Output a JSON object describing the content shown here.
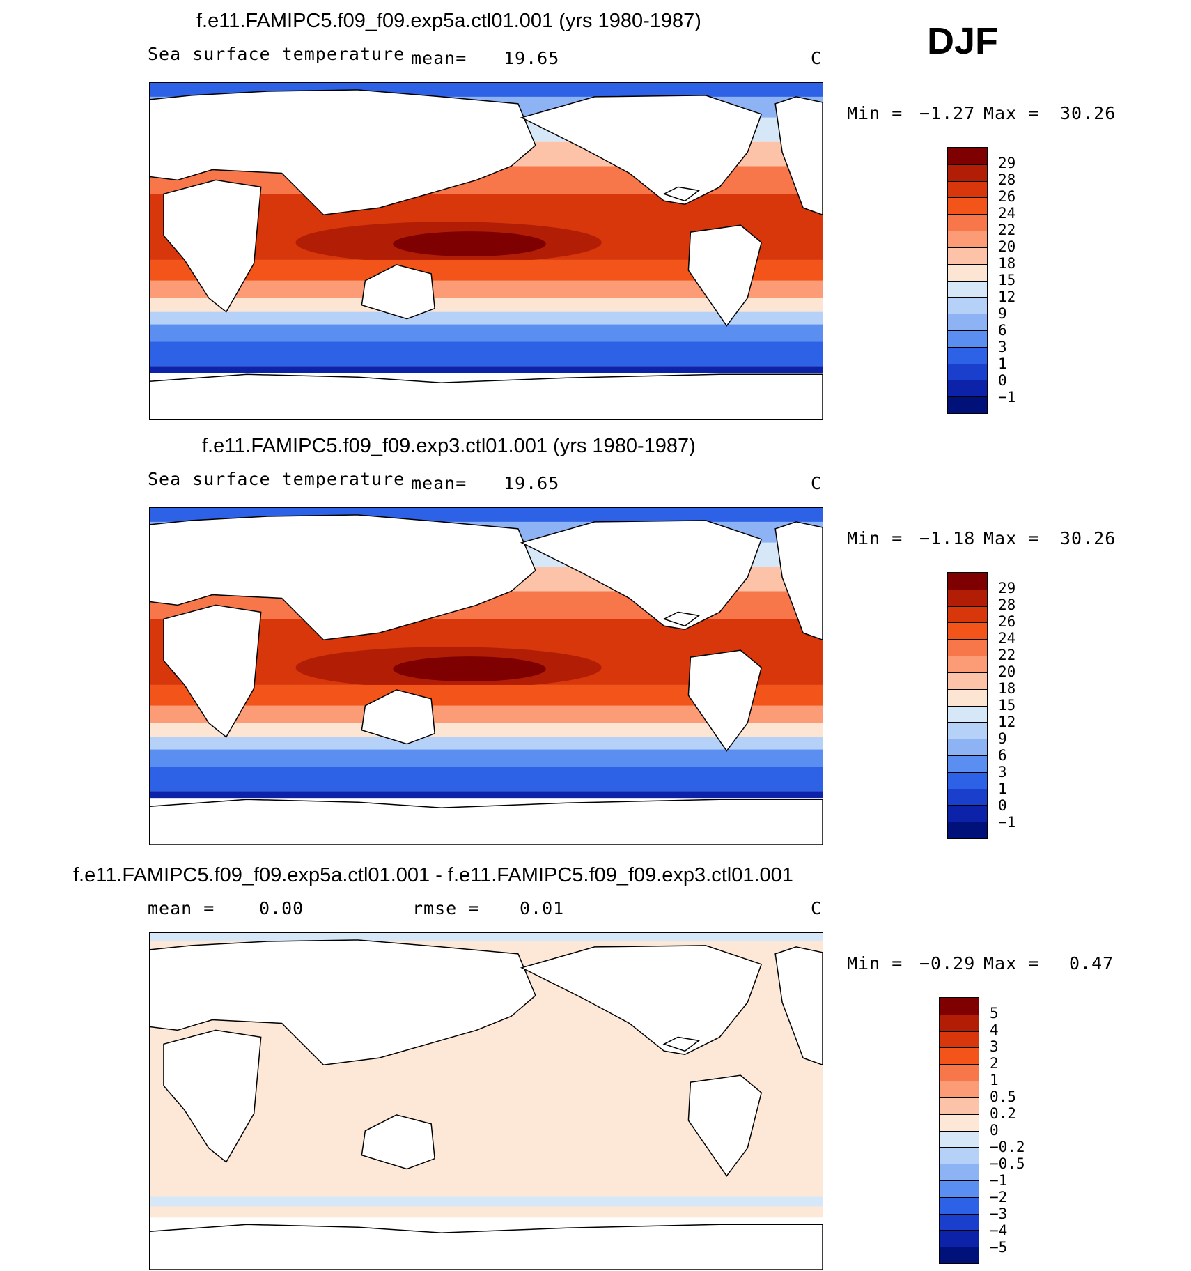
{
  "season": "DJF",
  "panels": [
    {
      "title": "f.e11.FAMIPC5.f09_f09.exp5a.ctl01.001 (yrs 1980-1987)",
      "variable": "Sea surface temperature",
      "stat1_label": "mean=",
      "stat1_value": "19.65",
      "units": "C",
      "min_label": "Min =",
      "min_value": "−1.27",
      "max_label": "Max =",
      "max_value": "30.26",
      "levels": [
        "29",
        "28",
        "26",
        "24",
        "22",
        "20",
        "18",
        "15",
        "12",
        "9",
        "6",
        "3",
        "1",
        "0",
        "−1"
      ]
    },
    {
      "title": "f.e11.FAMIPC5.f09_f09.exp3.ctl01.001 (yrs 1980-1987)",
      "variable": "Sea surface temperature",
      "stat1_label": "mean=",
      "stat1_value": "19.65",
      "units": "C",
      "min_label": "Min =",
      "min_value": "−1.18",
      "max_label": "Max =",
      "max_value": "30.26",
      "levels": [
        "29",
        "28",
        "26",
        "24",
        "22",
        "20",
        "18",
        "15",
        "12",
        "9",
        "6",
        "3",
        "1",
        "0",
        "−1"
      ]
    },
    {
      "title": "f.e11.FAMIPC5.f09_f09.exp5a.ctl01.001 - f.e11.FAMIPC5.f09_f09.exp3.ctl01.001",
      "stat1_label": "mean =",
      "stat1_value": "0.00",
      "stat2_label": "rmse =",
      "stat2_value": "0.01",
      "units": "C",
      "min_label": "Min =",
      "min_value": "−0.29",
      "max_label": "Max =",
      "max_value": "0.47",
      "levels": [
        "5",
        "4",
        "3",
        "2",
        "1",
        "0.5",
        "0.2",
        "0",
        "−0.2",
        "−0.5",
        "−1",
        "−2",
        "−3",
        "−4",
        "−5"
      ]
    }
  ],
  "colors": {
    "sst_scale": [
      "#7f0000",
      "#b21e05",
      "#d8360b",
      "#f2541a",
      "#f7774a",
      "#fb9c77",
      "#fcc3a8",
      "#fde5d4",
      "#d6e8f8",
      "#b5d1f7",
      "#8db3f5",
      "#5a8ef0",
      "#2d62e6",
      "#1a3fcc",
      "#0c22a8",
      "#00117a"
    ],
    "diff_scale": [
      "#7f0000",
      "#b21e05",
      "#d8360b",
      "#f2541a",
      "#f7774a",
      "#fb9c77",
      "#fcc3a8",
      "#fde8d8",
      "#d6e8f8",
      "#b5d1f7",
      "#8db3f5",
      "#5a8ef0",
      "#2d62e6",
      "#1a3fcc",
      "#0c22a8",
      "#00117a"
    ]
  }
}
